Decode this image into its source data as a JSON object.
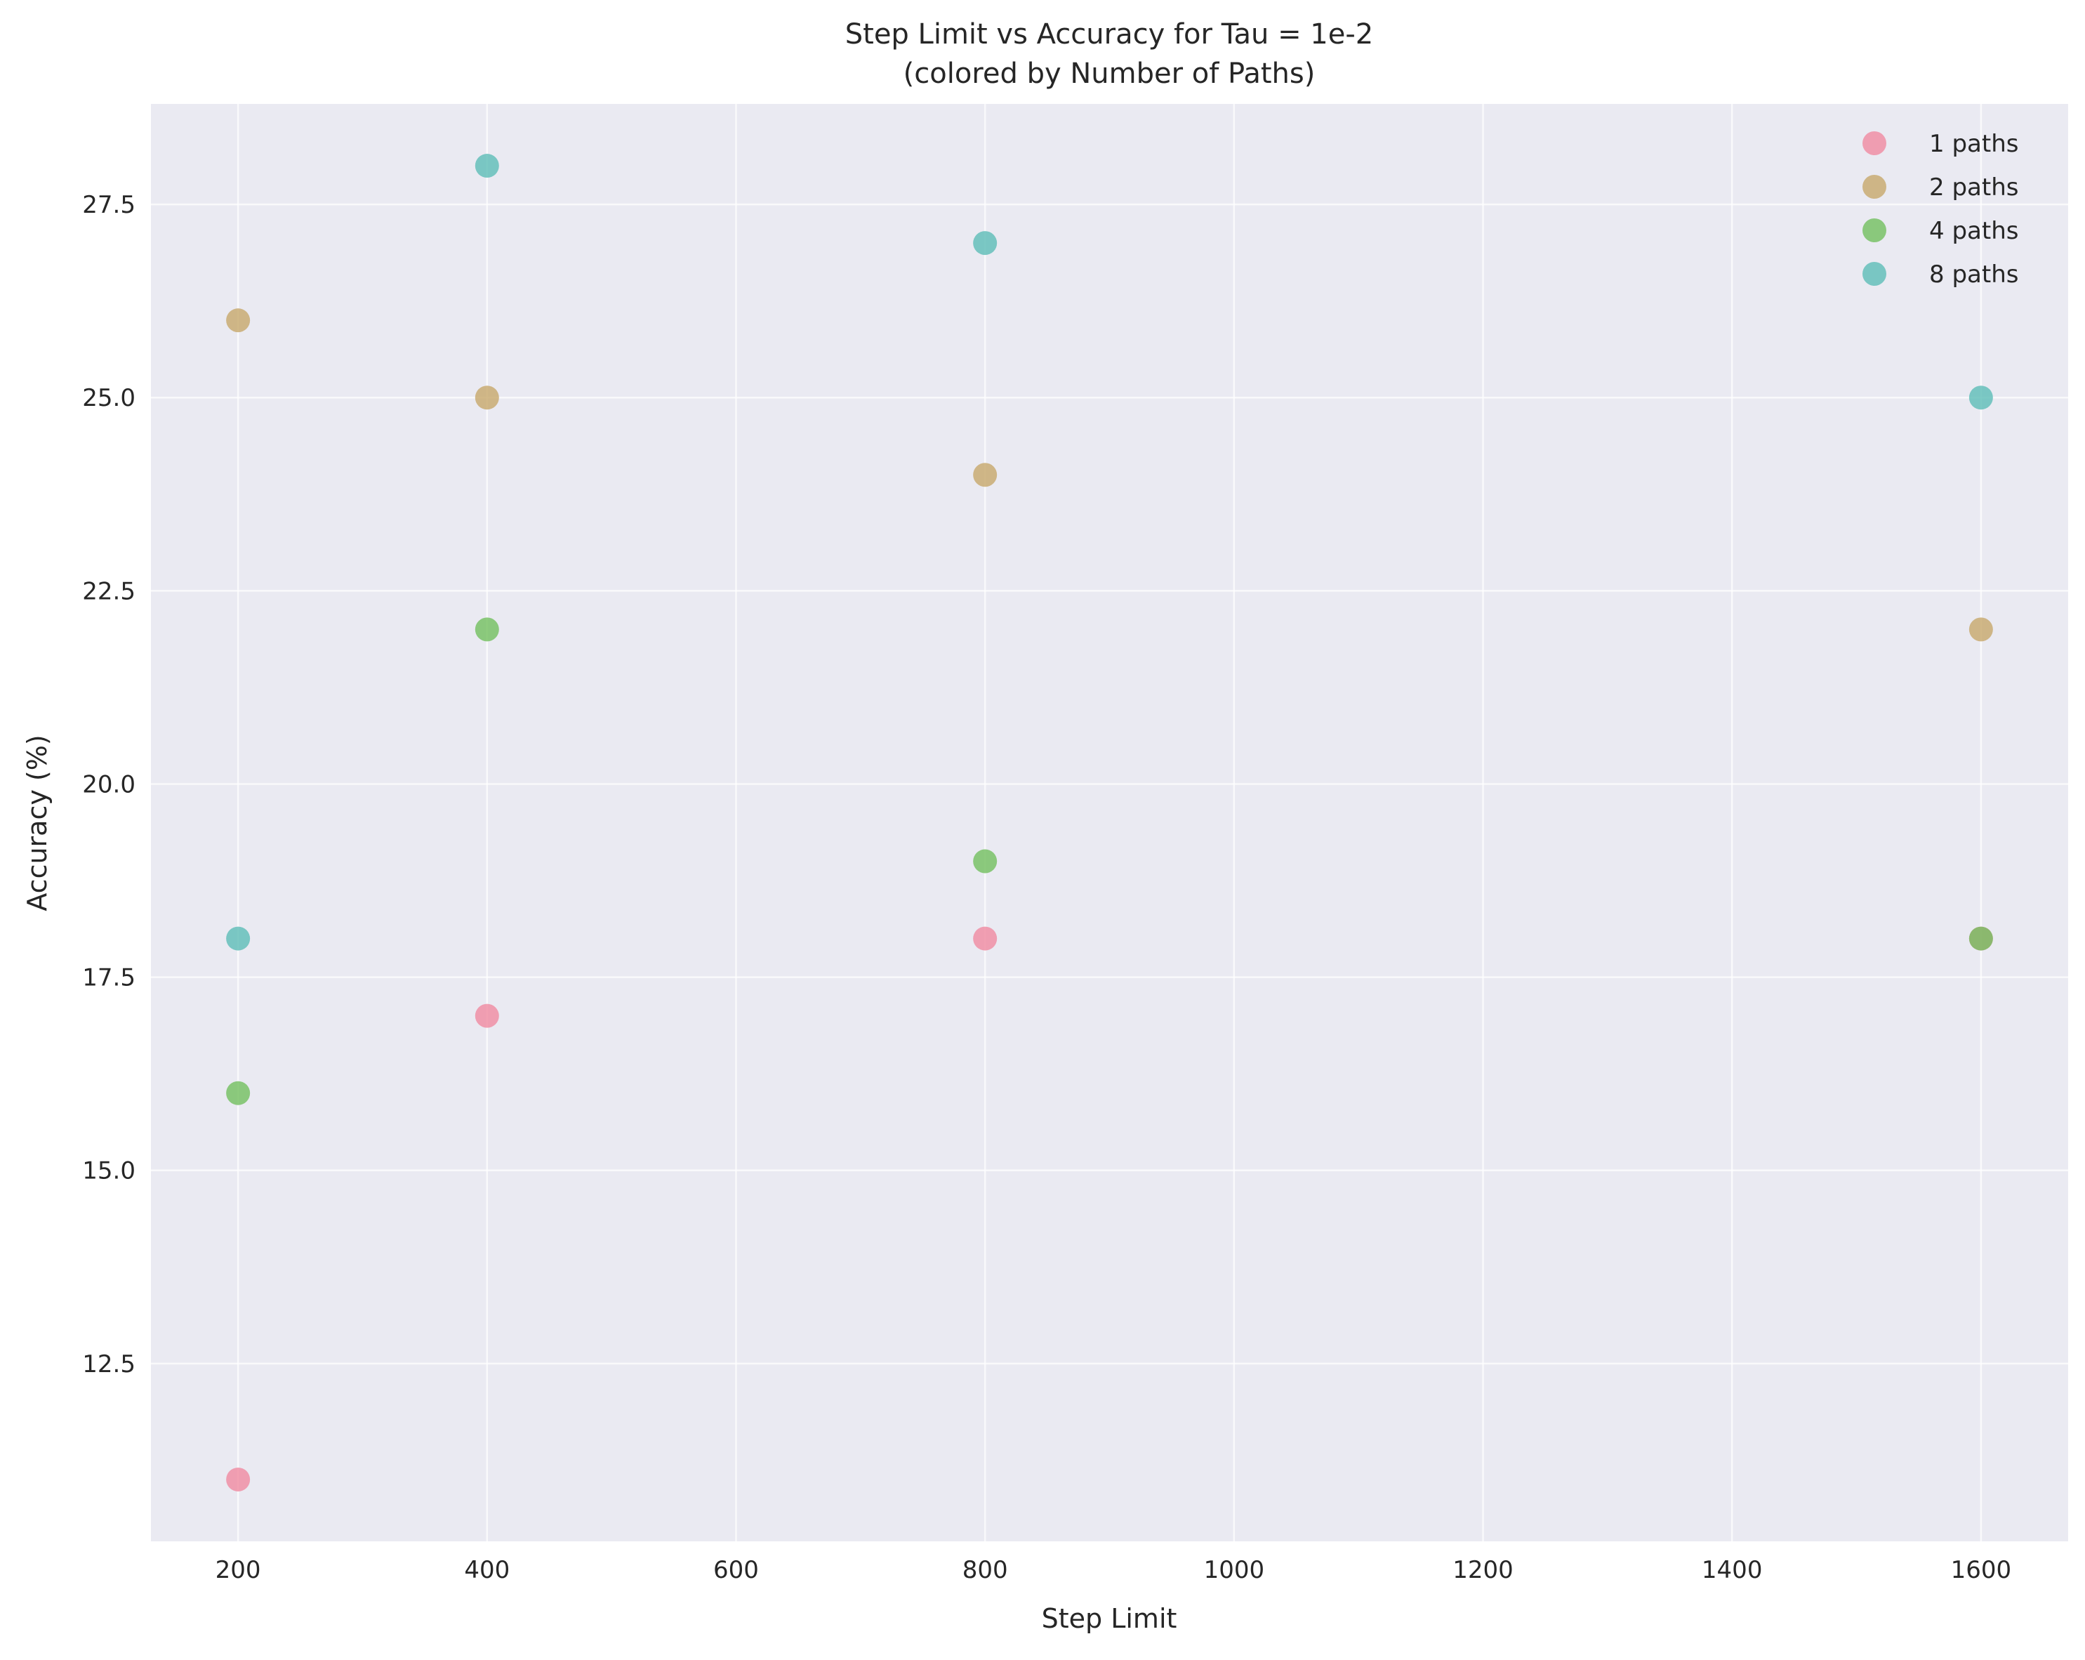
{
  "chart_data": {
    "type": "scatter",
    "title": "Step Limit vs Accuracy for Tau = 1e-2",
    "subtitle": "(colored by Number of Paths)",
    "xlabel": "Step Limit",
    "ylabel": "Accuracy (%)",
    "xlim": [
      130,
      1670
    ],
    "ylim": [
      10.2,
      28.8
    ],
    "xticks": [
      200,
      400,
      600,
      800,
      1000,
      1200,
      1400,
      1600
    ],
    "yticks": [
      12.5,
      15.0,
      17.5,
      20.0,
      22.5,
      25.0,
      27.5
    ],
    "xtick_labels": [
      "200",
      "400",
      "600",
      "800",
      "1000",
      "1200",
      "1400",
      "1600"
    ],
    "ytick_labels": [
      "12.5",
      "15.0",
      "17.5",
      "20.0",
      "22.5",
      "25.0",
      "27.5"
    ],
    "grid": true,
    "legend_position": "top-right",
    "series": [
      {
        "name": "1 paths",
        "color": "#f08aa0",
        "points": [
          {
            "x": 200,
            "y": 11
          },
          {
            "x": 400,
            "y": 17
          },
          {
            "x": 800,
            "y": 18
          },
          {
            "x": 1600,
            "y": 18
          }
        ]
      },
      {
        "name": "2 paths",
        "color": "#c7a86a",
        "points": [
          {
            "x": 200,
            "y": 26
          },
          {
            "x": 400,
            "y": 25
          },
          {
            "x": 800,
            "y": 24
          },
          {
            "x": 1600,
            "y": 22
          }
        ]
      },
      {
        "name": "4 paths",
        "color": "#72bf5e",
        "points": [
          {
            "x": 200,
            "y": 16
          },
          {
            "x": 400,
            "y": 22
          },
          {
            "x": 800,
            "y": 19
          },
          {
            "x": 1600,
            "y": 18
          }
        ]
      },
      {
        "name": "8 paths",
        "color": "#5dbdb6",
        "points": [
          {
            "x": 200,
            "y": 18
          },
          {
            "x": 400,
            "y": 28
          },
          {
            "x": 800,
            "y": 27
          },
          {
            "x": 1600,
            "y": 25
          }
        ]
      }
    ]
  }
}
